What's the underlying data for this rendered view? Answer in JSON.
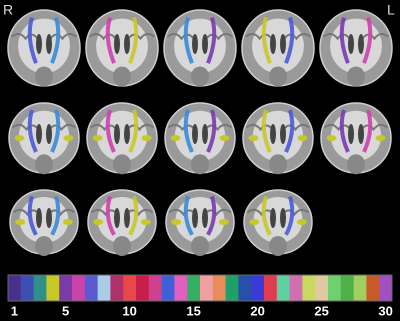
{
  "side_labels": {
    "right": "R",
    "left": "L"
  },
  "colorbar": {
    "colors": [
      "#4b2f8f",
      "#3a4fb0",
      "#2f8f8a",
      "#c8c828",
      "#7a3aa8",
      "#c844a8",
      "#5b5bd0",
      "#a8cde6",
      "#b0306a",
      "#e84848",
      "#c81e4a",
      "#d04090",
      "#4060d8",
      "#e060c0",
      "#30b060",
      "#f0a0a0",
      "#e88c5c",
      "#20a068",
      "#2850a8",
      "#3a3ad8",
      "#e03c50",
      "#60d0a0",
      "#d070b0",
      "#c8d860",
      "#e0c8a0",
      "#70d070",
      "#50b048",
      "#a0d060",
      "#c85a28",
      "#a050c0"
    ],
    "ticks": [
      1,
      5,
      10,
      15,
      20,
      25,
      30
    ]
  }
}
